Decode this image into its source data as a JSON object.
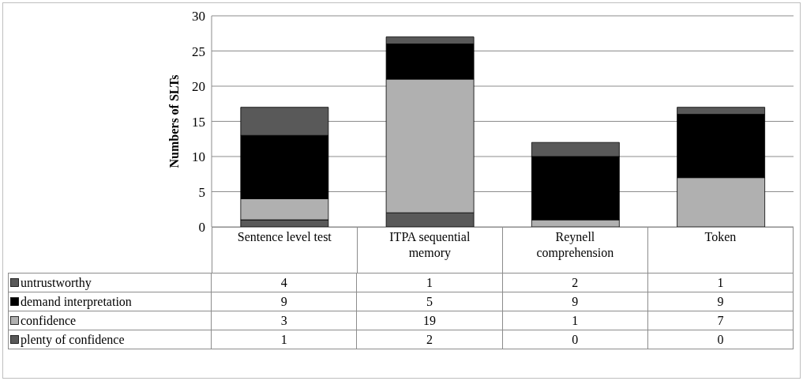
{
  "chart_data": {
    "type": "bar",
    "stacked": true,
    "ylabel": "Numbers of SLTs",
    "categories": [
      "Sentence level test",
      "ITPA sequential memory",
      "Reynell comprehension",
      "Token"
    ],
    "series": [
      {
        "name": "plenty of confidence",
        "color": "#595959",
        "values": [
          1,
          2,
          0,
          0
        ]
      },
      {
        "name": "confidence",
        "color": "#b0b0b0",
        "values": [
          3,
          19,
          1,
          7
        ]
      },
      {
        "name": "demand interpretation",
        "color": "#000000",
        "values": [
          9,
          5,
          9,
          9
        ]
      },
      {
        "name": "untrustworthy",
        "color": "#595959",
        "values": [
          4,
          1,
          2,
          1
        ]
      }
    ],
    "ylim": [
      0,
      30
    ],
    "yticks": [
      0,
      5,
      10,
      15,
      20,
      25,
      30
    ],
    "grid": "y",
    "data_labels": true,
    "legend": "bottom left"
  }
}
